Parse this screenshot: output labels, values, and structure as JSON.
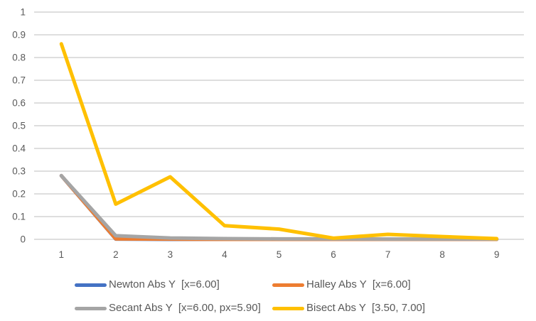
{
  "chart_data": {
    "type": "line",
    "title": "",
    "xlabel": "",
    "ylabel": "",
    "x_ticks": [
      "1",
      "2",
      "3",
      "4",
      "5",
      "6",
      "7",
      "8",
      "9"
    ],
    "y_ticks": [
      0,
      0.1,
      0.2,
      0.3,
      0.4,
      0.5,
      0.6,
      0.7,
      0.8,
      0.9,
      1
    ],
    "ylim": [
      0,
      1
    ],
    "grid": true,
    "legend_position": "bottom",
    "series": [
      {
        "id": "newton",
        "name": "Newton Abs Y  [x=6.00]",
        "color": "#4472C4",
        "values": [
          0.28,
          0.001,
          0,
          0,
          0,
          0,
          0,
          0,
          0
        ]
      },
      {
        "id": "halley",
        "name": "Halley Abs Y  [x=6.00]",
        "color": "#ED7D31",
        "values": [
          0.28,
          0.002,
          0.001,
          0,
          0,
          0,
          0,
          0,
          0
        ]
      },
      {
        "id": "secant",
        "name": "Secant Abs Y  [x=6.00, px=5.90]",
        "color": "#A5A5A5",
        "values": [
          0.28,
          0.016,
          0.006,
          0.003,
          0.002,
          0.002,
          0.001,
          0.001,
          0.001
        ]
      },
      {
        "id": "bisect",
        "name": "Bisect Abs Y  [3.50, 7.00]",
        "color": "#FFC000",
        "values": [
          0.86,
          0.155,
          0.275,
          0.06,
          0.045,
          0.005,
          0.022,
          0.012,
          0.003
        ]
      }
    ],
    "colors": {
      "gridline": "#D9D9D9",
      "axis_text": "#595959",
      "background": "#FFFFFF"
    }
  }
}
